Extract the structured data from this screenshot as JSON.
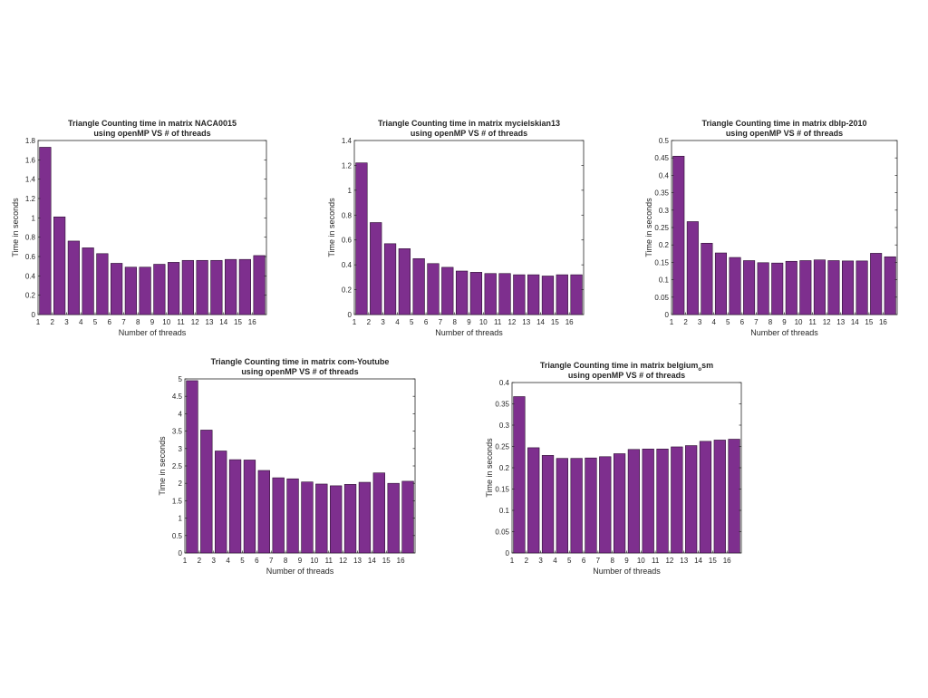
{
  "colors": {
    "bar_fill": "#7E2F8E",
    "bar_edge": "#2b0f30",
    "axis": "#262626",
    "background": "#ffffff"
  },
  "chart_data": [
    {
      "type": "bar",
      "title_line1": "Triangle Counting time in matrix NACA0015",
      "title_line2": "using openMP VS # of threads",
      "xlabel": "Number of threads",
      "ylabel": "Time in seconds",
      "categories": [
        "1",
        "2",
        "3",
        "4",
        "5",
        "6",
        "7",
        "8",
        "9",
        "10",
        "11",
        "12",
        "13",
        "14",
        "15",
        "16"
      ],
      "values": [
        1.73,
        1.01,
        0.76,
        0.69,
        0.63,
        0.53,
        0.49,
        0.49,
        0.52,
        0.54,
        0.56,
        0.56,
        0.56,
        0.57,
        0.57,
        0.61
      ],
      "ylim": [
        0,
        1.8
      ],
      "yticks": [
        "0",
        "0.2",
        "0.4",
        "0.6",
        "0.8",
        "1",
        "1.2",
        "1.4",
        "1.6",
        "1.8"
      ]
    },
    {
      "type": "bar",
      "title_line1": "Triangle Counting time in matrix mycielskian13",
      "title_line2": "using openMP VS # of threads",
      "xlabel": "Number of threads",
      "ylabel": "Time in seconds",
      "categories": [
        "1",
        "2",
        "3",
        "4",
        "5",
        "6",
        "7",
        "8",
        "9",
        "10",
        "11",
        "12",
        "13",
        "14",
        "15",
        "16"
      ],
      "values": [
        1.22,
        0.74,
        0.57,
        0.53,
        0.45,
        0.41,
        0.38,
        0.35,
        0.34,
        0.33,
        0.33,
        0.32,
        0.32,
        0.31,
        0.32,
        0.32
      ],
      "ylim": [
        0,
        1.4
      ],
      "yticks": [
        "0",
        "0.2",
        "0.4",
        "0.6",
        "0.8",
        "1",
        "1.2",
        "1.4"
      ]
    },
    {
      "type": "bar",
      "title_line1": "Triangle Counting time in matrix dblp-2010",
      "title_line2": "using openMP VS # of threads",
      "xlabel": "Number of threads",
      "ylabel": "Time in seconds",
      "categories": [
        "1",
        "2",
        "3",
        "4",
        "5",
        "6",
        "7",
        "8",
        "9",
        "10",
        "11",
        "12",
        "13",
        "14",
        "15",
        "16"
      ],
      "values": [
        0.455,
        0.267,
        0.205,
        0.177,
        0.164,
        0.155,
        0.149,
        0.148,
        0.153,
        0.155,
        0.157,
        0.155,
        0.154,
        0.154,
        0.176,
        0.166
      ],
      "ylim": [
        0,
        0.5
      ],
      "yticks": [
        "0",
        "0.05",
        "0.1",
        "0.15",
        "0.2",
        "0.25",
        "0.3",
        "0.35",
        "0.4",
        "0.45",
        "0.5"
      ]
    },
    {
      "type": "bar",
      "title_line1": "Triangle Counting time in matrix com-Youtube",
      "title_line2": "using openMP VS # of threads",
      "xlabel": "Number of threads",
      "ylabel": "Time in seconds",
      "categories": [
        "1",
        "2",
        "3",
        "4",
        "5",
        "6",
        "7",
        "8",
        "9",
        "10",
        "11",
        "12",
        "13",
        "14",
        "15",
        "16"
      ],
      "values": [
        4.95,
        3.53,
        2.93,
        2.68,
        2.67,
        2.37,
        2.16,
        2.13,
        2.04,
        1.98,
        1.93,
        1.97,
        2.03,
        2.3,
        2.0,
        2.06
      ],
      "ylim": [
        0,
        5
      ],
      "yticks": [
        "0",
        "0.5",
        "1",
        "1.5",
        "2",
        "2.5",
        "3",
        "3.5",
        "4",
        "4.5",
        "5"
      ]
    },
    {
      "type": "bar",
      "title_pre": "Triangle Counting time in matrix belgium",
      "title_sub": "o",
      "title_post": "sm",
      "title_line2": "using openMP VS # of threads",
      "xlabel": "Number of threads",
      "ylabel": "Time in seconds",
      "categories": [
        "1",
        "2",
        "3",
        "4",
        "5",
        "6",
        "7",
        "8",
        "9",
        "10",
        "11",
        "12",
        "13",
        "14",
        "15",
        "16"
      ],
      "values": [
        0.367,
        0.247,
        0.229,
        0.222,
        0.222,
        0.223,
        0.226,
        0.233,
        0.243,
        0.244,
        0.244,
        0.249,
        0.252,
        0.262,
        0.265,
        0.267
      ],
      "ylim": [
        0,
        0.4
      ],
      "yticks": [
        "0",
        "0.05",
        "0.1",
        "0.15",
        "0.2",
        "0.25",
        "0.3",
        "0.35",
        "0.4"
      ]
    }
  ]
}
